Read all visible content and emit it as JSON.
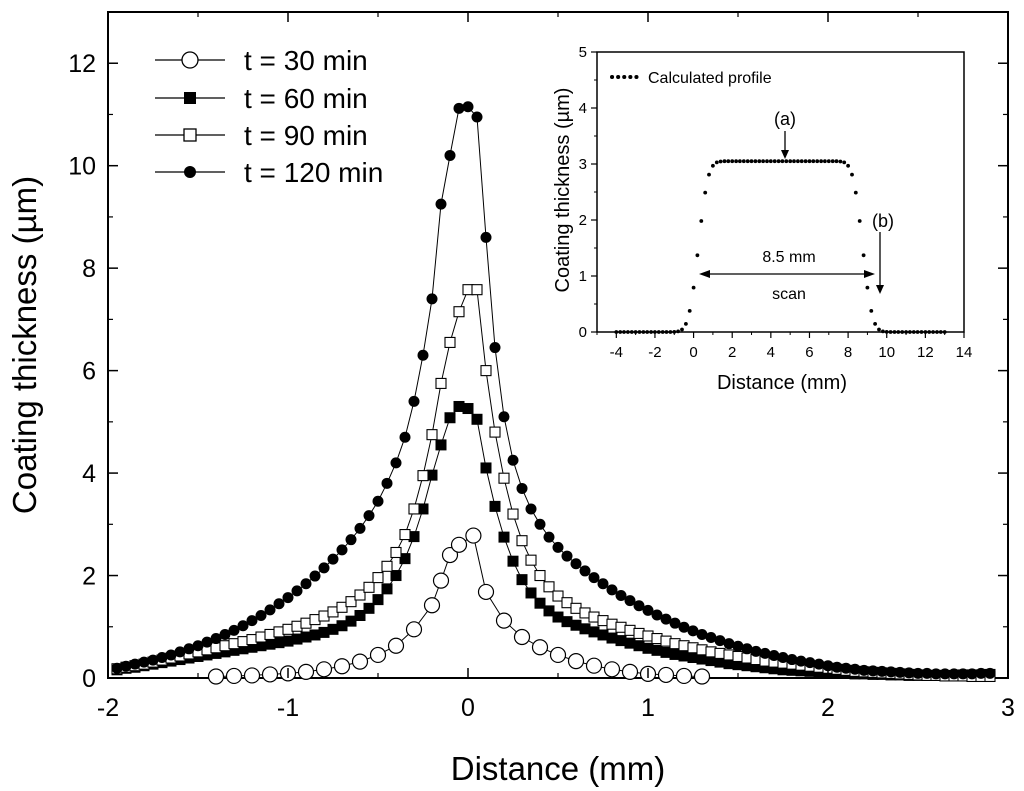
{
  "chart_data": [
    {
      "type": "scatter",
      "title": "",
      "xlabel": "Distance (mm)",
      "ylabel": "Coating thickness (µm)",
      "xlim": [
        -2,
        3
      ],
      "ylim": [
        0,
        13
      ],
      "xticks": [
        -2,
        -1,
        0,
        1,
        2,
        3
      ],
      "xtick_labels": [
        "-2",
        "-1",
        "0",
        "1",
        "2",
        "3"
      ],
      "yticks": [
        0,
        2,
        4,
        6,
        8,
        10,
        12
      ],
      "ytick_labels": [
        "0",
        "2",
        "4",
        "6",
        "8",
        "10",
        "12"
      ],
      "legend_position": "top-left",
      "series": [
        {
          "name": "t = 30 min",
          "marker": "open-circle",
          "x": [
            -1.4,
            -1.3,
            -1.2,
            -1.1,
            -1.0,
            -0.9,
            -0.8,
            -0.7,
            -0.6,
            -0.5,
            -0.4,
            -0.3,
            -0.2,
            -0.15,
            -0.1,
            -0.05,
            0.03,
            0.1,
            0.2,
            0.3,
            0.4,
            0.5,
            0.6,
            0.7,
            0.8,
            0.9,
            1.0,
            1.1,
            1.2,
            1.3
          ],
          "y": [
            0.03,
            0.04,
            0.05,
            0.07,
            0.09,
            0.12,
            0.17,
            0.23,
            0.32,
            0.45,
            0.63,
            0.95,
            1.42,
            1.9,
            2.4,
            2.6,
            2.78,
            1.68,
            1.12,
            0.8,
            0.6,
            0.45,
            0.33,
            0.24,
            0.17,
            0.12,
            0.08,
            0.06,
            0.04,
            0.03
          ]
        },
        {
          "name": "t = 60 min",
          "marker": "filled-square",
          "x": [
            -1.95,
            -1.9,
            -1.85,
            -1.8,
            -1.75,
            -1.7,
            -1.65,
            -1.6,
            -1.55,
            -1.5,
            -1.45,
            -1.4,
            -1.35,
            -1.3,
            -1.25,
            -1.2,
            -1.15,
            -1.1,
            -1.05,
            -1.0,
            -0.95,
            -0.9,
            -0.85,
            -0.8,
            -0.75,
            -0.7,
            -0.65,
            -0.6,
            -0.55,
            -0.5,
            -0.45,
            -0.4,
            -0.35,
            -0.3,
            -0.25,
            -0.2,
            -0.15,
            -0.1,
            -0.05,
            0.0,
            0.05,
            0.1,
            0.15,
            0.2,
            0.25,
            0.3,
            0.35,
            0.4,
            0.45,
            0.5,
            0.55,
            0.6,
            0.65,
            0.7,
            0.75,
            0.8,
            0.85,
            0.9,
            0.95,
            1.0,
            1.05,
            1.1,
            1.15,
            1.2,
            1.25,
            1.3,
            1.35,
            1.4,
            1.45,
            1.5,
            1.55,
            1.6,
            1.65,
            1.7,
            1.75,
            1.8,
            1.85,
            1.9,
            1.95,
            2.0,
            2.05,
            2.1,
            2.15,
            2.2,
            2.25,
            2.3,
            2.35,
            2.4,
            2.45,
            2.5,
            2.55,
            2.6,
            2.65,
            2.7,
            2.75,
            2.8,
            2.85,
            2.9
          ],
          "y": [
            0.16,
            0.19,
            0.21,
            0.24,
            0.27,
            0.3,
            0.33,
            0.36,
            0.39,
            0.42,
            0.45,
            0.48,
            0.51,
            0.54,
            0.57,
            0.6,
            0.63,
            0.66,
            0.69,
            0.72,
            0.76,
            0.8,
            0.84,
            0.89,
            0.95,
            1.02,
            1.11,
            1.22,
            1.36,
            1.53,
            1.74,
            2.0,
            2.33,
            2.76,
            3.3,
            3.96,
            4.55,
            5.08,
            5.3,
            5.26,
            5.05,
            4.1,
            3.35,
            2.75,
            2.28,
            1.92,
            1.66,
            1.46,
            1.31,
            1.19,
            1.1,
            1.03,
            0.96,
            0.9,
            0.84,
            0.78,
            0.73,
            0.68,
            0.63,
            0.58,
            0.54,
            0.5,
            0.46,
            0.43,
            0.4,
            0.37,
            0.34,
            0.31,
            0.28,
            0.26,
            0.24,
            0.22,
            0.2,
            0.18,
            0.16,
            0.15,
            0.14,
            0.13,
            0.12,
            0.11,
            0.1,
            0.09,
            0.08,
            0.08,
            0.07,
            0.07,
            0.06,
            0.06,
            0.05,
            0.05,
            0.05,
            0.05,
            0.05,
            0.05,
            0.06,
            0.06,
            0.06,
            0.07
          ]
        },
        {
          "name": "t = 90 min",
          "marker": "open-square",
          "x": [
            -1.95,
            -1.9,
            -1.85,
            -1.8,
            -1.75,
            -1.7,
            -1.65,
            -1.6,
            -1.55,
            -1.5,
            -1.45,
            -1.4,
            -1.35,
            -1.3,
            -1.25,
            -1.2,
            -1.15,
            -1.1,
            -1.05,
            -1.0,
            -0.95,
            -0.9,
            -0.85,
            -0.8,
            -0.75,
            -0.7,
            -0.65,
            -0.6,
            -0.55,
            -0.5,
            -0.45,
            -0.4,
            -0.35,
            -0.3,
            -0.25,
            -0.2,
            -0.15,
            -0.1,
            -0.05,
            0.0,
            0.05,
            0.1,
            0.15,
            0.2,
            0.25,
            0.3,
            0.35,
            0.4,
            0.45,
            0.5,
            0.55,
            0.6,
            0.65,
            0.7,
            0.75,
            0.8,
            0.85,
            0.9,
            0.95,
            1.0,
            1.05,
            1.1,
            1.15,
            1.2,
            1.25,
            1.3,
            1.35,
            1.4,
            1.45,
            1.5,
            1.55,
            1.6,
            1.65,
            1.7,
            1.75,
            1.8,
            1.85,
            1.9,
            1.95,
            2.0,
            2.05,
            2.1,
            2.15,
            2.2,
            2.25,
            2.3,
            2.35,
            2.4,
            2.45,
            2.5,
            2.55,
            2.6,
            2.65,
            2.7,
            2.75,
            2.8,
            2.85,
            2.9
          ],
          "y": [
            0.18,
            0.21,
            0.24,
            0.27,
            0.31,
            0.35,
            0.39,
            0.43,
            0.47,
            0.51,
            0.55,
            0.59,
            0.63,
            0.67,
            0.71,
            0.75,
            0.8,
            0.85,
            0.9,
            0.95,
            1.01,
            1.07,
            1.14,
            1.21,
            1.29,
            1.38,
            1.49,
            1.62,
            1.77,
            1.96,
            2.18,
            2.45,
            2.8,
            3.3,
            3.95,
            4.75,
            5.75,
            6.55,
            7.15,
            7.58,
            7.58,
            6.0,
            4.8,
            3.9,
            3.2,
            2.68,
            2.3,
            2.0,
            1.78,
            1.6,
            1.47,
            1.36,
            1.27,
            1.19,
            1.12,
            1.05,
            0.99,
            0.93,
            0.87,
            0.82,
            0.77,
            0.72,
            0.67,
            0.63,
            0.59,
            0.55,
            0.51,
            0.48,
            0.45,
            0.42,
            0.39,
            0.36,
            0.33,
            0.31,
            0.29,
            0.27,
            0.25,
            0.23,
            0.21,
            0.19,
            0.17,
            0.15,
            0.13,
            0.12,
            0.11,
            0.1,
            0.09,
            0.08,
            0.07,
            0.06,
            0.05,
            0.05,
            0.04,
            0.04,
            0.04,
            0.03,
            0.03,
            0.03
          ]
        },
        {
          "name": "t = 120 min",
          "marker": "filled-circle",
          "x": [
            -1.95,
            -1.9,
            -1.85,
            -1.8,
            -1.75,
            -1.7,
            -1.65,
            -1.6,
            -1.55,
            -1.5,
            -1.45,
            -1.4,
            -1.35,
            -1.3,
            -1.25,
            -1.2,
            -1.15,
            -1.1,
            -1.05,
            -1.0,
            -0.95,
            -0.9,
            -0.85,
            -0.8,
            -0.75,
            -0.7,
            -0.65,
            -0.6,
            -0.55,
            -0.5,
            -0.45,
            -0.4,
            -0.35,
            -0.3,
            -0.25,
            -0.2,
            -0.15,
            -0.1,
            -0.05,
            0.0,
            0.05,
            0.1,
            0.15,
            0.2,
            0.25,
            0.3,
            0.35,
            0.4,
            0.45,
            0.5,
            0.55,
            0.6,
            0.65,
            0.7,
            0.75,
            0.8,
            0.85,
            0.9,
            0.95,
            1.0,
            1.05,
            1.1,
            1.15,
            1.2,
            1.25,
            1.3,
            1.35,
            1.4,
            1.45,
            1.5,
            1.55,
            1.6,
            1.65,
            1.7,
            1.75,
            1.8,
            1.85,
            1.9,
            1.95,
            2.0,
            2.05,
            2.1,
            2.15,
            2.2,
            2.25,
            2.3,
            2.35,
            2.4,
            2.45,
            2.5,
            2.55,
            2.6,
            2.65,
            2.7,
            2.75,
            2.8,
            2.85,
            2.9
          ],
          "y": [
            0.19,
            0.23,
            0.27,
            0.31,
            0.35,
            0.4,
            0.45,
            0.51,
            0.57,
            0.63,
            0.7,
            0.77,
            0.85,
            0.93,
            1.02,
            1.12,
            1.22,
            1.33,
            1.45,
            1.57,
            1.7,
            1.84,
            1.99,
            2.15,
            2.32,
            2.5,
            2.7,
            2.92,
            3.17,
            3.45,
            3.8,
            4.2,
            4.7,
            5.4,
            6.3,
            7.4,
            9.25,
            10.2,
            11.12,
            11.15,
            10.95,
            8.6,
            6.45,
            5.1,
            4.25,
            3.7,
            3.3,
            3.0,
            2.75,
            2.55,
            2.38,
            2.23,
            2.09,
            1.96,
            1.84,
            1.72,
            1.61,
            1.51,
            1.41,
            1.32,
            1.23,
            1.15,
            1.07,
            0.99,
            0.92,
            0.85,
            0.79,
            0.73,
            0.67,
            0.62,
            0.57,
            0.52,
            0.48,
            0.44,
            0.4,
            0.36,
            0.33,
            0.3,
            0.27,
            0.24,
            0.21,
            0.19,
            0.17,
            0.15,
            0.14,
            0.13,
            0.12,
            0.11,
            0.1,
            0.09,
            0.09,
            0.08,
            0.08,
            0.08,
            0.08,
            0.08,
            0.09,
            0.09
          ]
        }
      ]
    },
    {
      "type": "scatter",
      "title": "",
      "xlabel": "Distance (mm)",
      "ylabel": "Coating thickness (µm)",
      "xlim": [
        -5,
        14
      ],
      "ylim": [
        0,
        5
      ],
      "xticks": [
        -4,
        -2,
        0,
        2,
        4,
        6,
        8,
        10,
        12,
        14
      ],
      "xtick_labels": [
        "-4",
        "-2",
        "0",
        "2",
        "4",
        "6",
        "8",
        "10",
        "12",
        "14"
      ],
      "yticks": [
        0,
        1,
        2,
        3,
        4,
        5
      ],
      "ytick_labels": [
        "0",
        "1",
        "2",
        "3",
        "4",
        "5"
      ],
      "legend_position": "top-left",
      "series": [
        {
          "name": "Calculated profile",
          "marker": "dotted",
          "model": {
            "plateau": 3.05,
            "center": 4.5,
            "half_width": 4.25,
            "edge_width": 0.55,
            "x_start": -4,
            "x_end": 13,
            "step": 0.2
          }
        }
      ],
      "annotations": {
        "a": "(a)",
        "b": "(b)",
        "width": "8.5 mm",
        "scan": "scan"
      }
    }
  ]
}
